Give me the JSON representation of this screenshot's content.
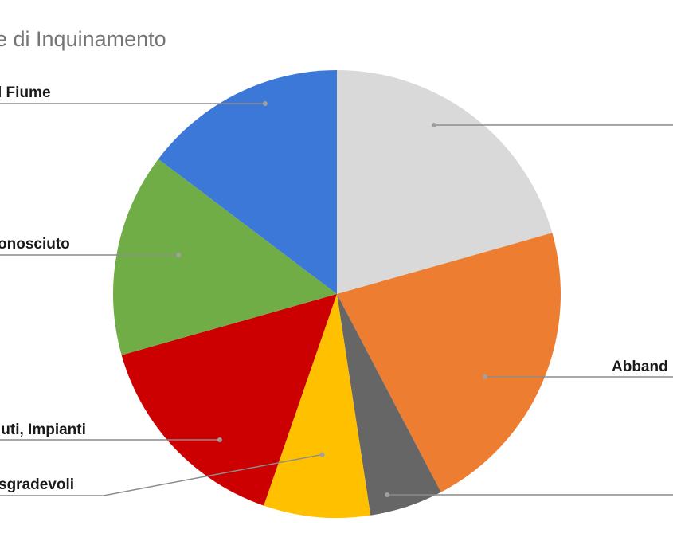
{
  "chart_data": {
    "type": "pie",
    "title": "e di Inquinamento",
    "start_angle": "top",
    "direction": "clockwise",
    "slices": [
      {
        "label": "",
        "value": 20.6,
        "color": "#d9d9d9"
      },
      {
        "label": "Abband",
        "value": 21.7,
        "color": "#ed7d31"
      },
      {
        "label": "",
        "value": 5.3,
        "color": "#666666"
      },
      {
        "label": "sgradevoli",
        "value": 7.7,
        "color": "#ffc000"
      },
      {
        "label": "iuti, Impianti",
        "value": 15.3,
        "color": "#cc0000"
      },
      {
        "label": "onosciuto",
        "value": 14.7,
        "color": "#70ad47"
      },
      {
        "label": "l Fiume",
        "value": 14.7,
        "color": "#3c78d8"
      }
    ],
    "legend": "none, callout labels"
  }
}
